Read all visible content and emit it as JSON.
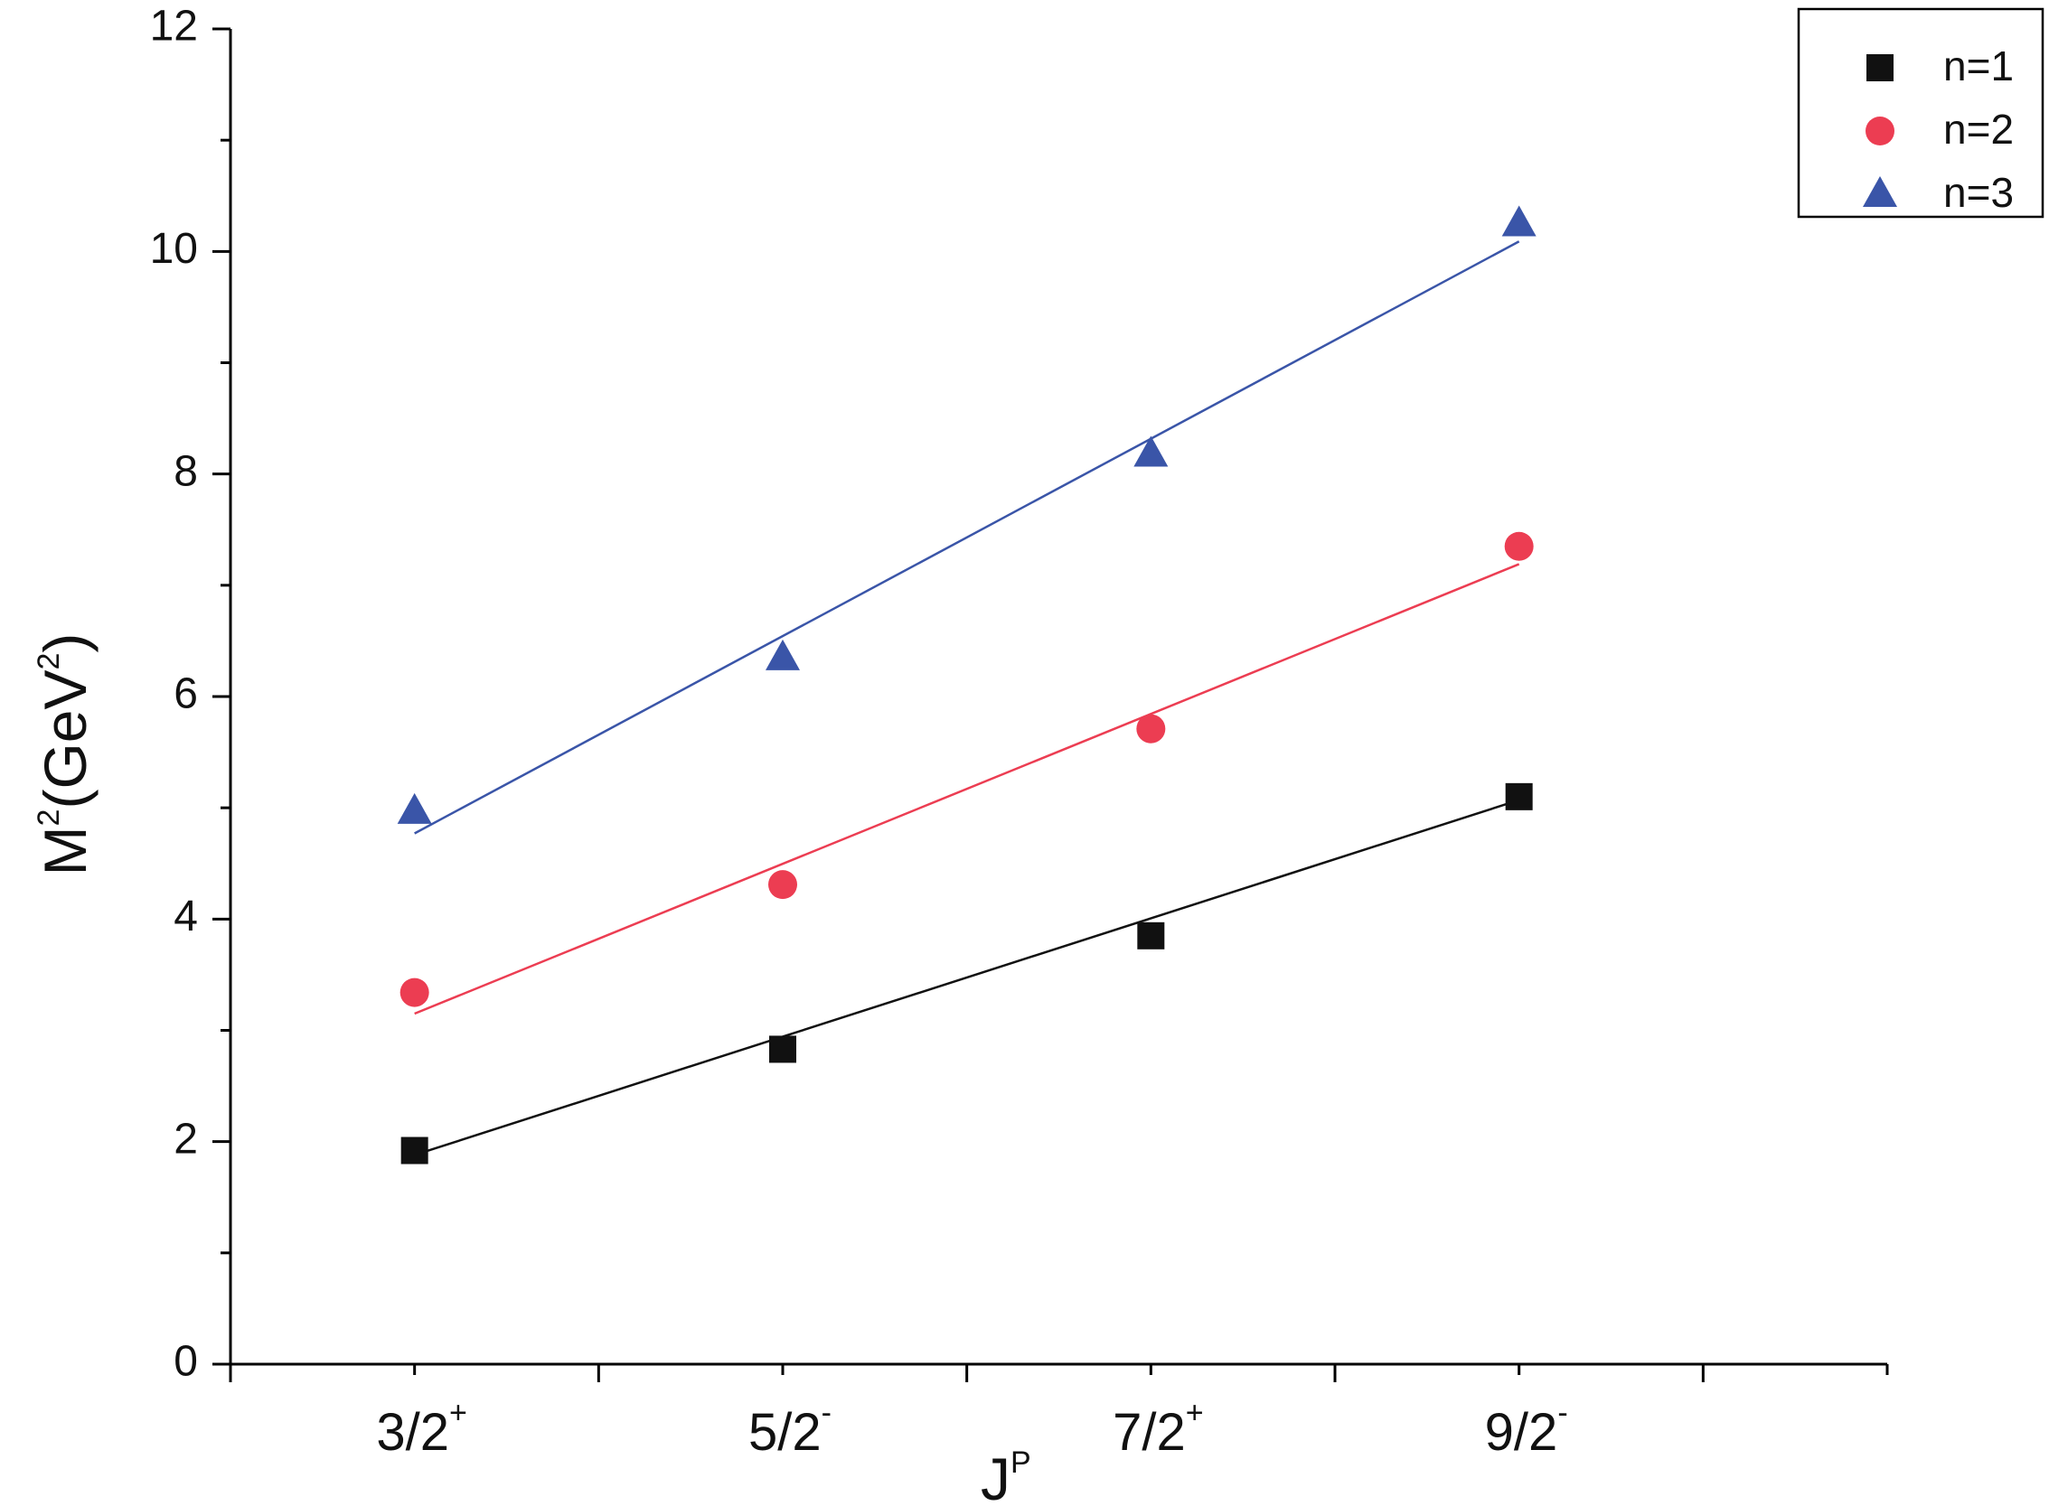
{
  "chart_data": {
    "type": "scatter",
    "categories": [
      {
        "base": "3/2",
        "sup": "+"
      },
      {
        "base": "5/2",
        "sup": "-"
      },
      {
        "base": "7/2",
        "sup": "+"
      },
      {
        "base": "9/2",
        "sup": "-"
      }
    ],
    "xlabel": {
      "base": "J",
      "sup": "P"
    },
    "ylabel": {
      "pre": "M",
      "sup1": "2",
      "mid": "(GeV",
      "sup2": "2",
      "post": ")"
    },
    "ylim": [
      0,
      12
    ],
    "yticks": [
      0,
      2,
      4,
      6,
      8,
      10,
      12
    ],
    "series": [
      {
        "name": "n=1",
        "marker": "square",
        "color": "#111111",
        "values": [
          1.92,
          2.83,
          3.85,
          5.1
        ],
        "fit": [
          1.88,
          5.07
        ]
      },
      {
        "name": "n=2",
        "marker": "circle",
        "color": "#ec3d52",
        "values": [
          3.34,
          4.31,
          5.71,
          7.35
        ],
        "fit": [
          3.15,
          7.19
        ]
      },
      {
        "name": "n=3",
        "marker": "triangle",
        "color": "#3a55a8",
        "values": [
          4.97,
          6.35,
          8.18,
          10.25
        ],
        "fit": [
          4.77,
          10.09
        ]
      }
    ],
    "legend_position": "top-right",
    "grid": false
  }
}
